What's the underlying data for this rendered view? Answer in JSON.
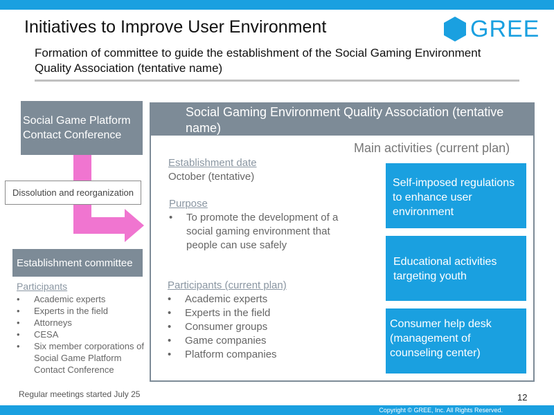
{
  "title": "Initiatives to Improve User Environment",
  "logo": {
    "text": "GREE",
    "icon": "hexagon-icon",
    "color": "#1aa0e0"
  },
  "subtitle": "Formation of committee to guide the establishment of the Social Gaming Environment Quality Association (tentative name)",
  "left": {
    "conference": "Social Game Platform Contact Conference",
    "dissolution": "Dissolution and reorganization",
    "committee": "Establishment committee",
    "participants_heading": "Participants",
    "participants": [
      "Academic experts",
      "Experts in the field",
      "Attorneys",
      "CESA",
      "Six member corporations of Social Game Platform Contact Conference"
    ],
    "regular_meetings": "Regular meetings started July 25"
  },
  "association": {
    "title": "Social Gaming Environment Quality Association (tentative name)",
    "establishment_label": "Establishment date",
    "establishment_value": "October (tentative)",
    "purpose_label": "Purpose",
    "purpose_items": [
      "To promote the development of a social gaming environment that people can use safely"
    ],
    "participants_label": "Participants (current plan)",
    "participants": [
      "Academic experts",
      "Experts in the field",
      "Consumer groups",
      "Game companies",
      "Platform companies"
    ],
    "main_activities_label": "Main activities (current plan)",
    "activities": [
      "Self-imposed regulations to enhance user environment",
      "Educational activities targeting youth",
      "Consumer help desk (management of counseling center)"
    ]
  },
  "footer": {
    "copyright": "Copyright © GREE, Inc. All Rights Reserved.",
    "page_number": "12"
  },
  "colors": {
    "accent": "#1aa0e0",
    "gray": "#7d8b97",
    "arrow": "#f075d0"
  }
}
